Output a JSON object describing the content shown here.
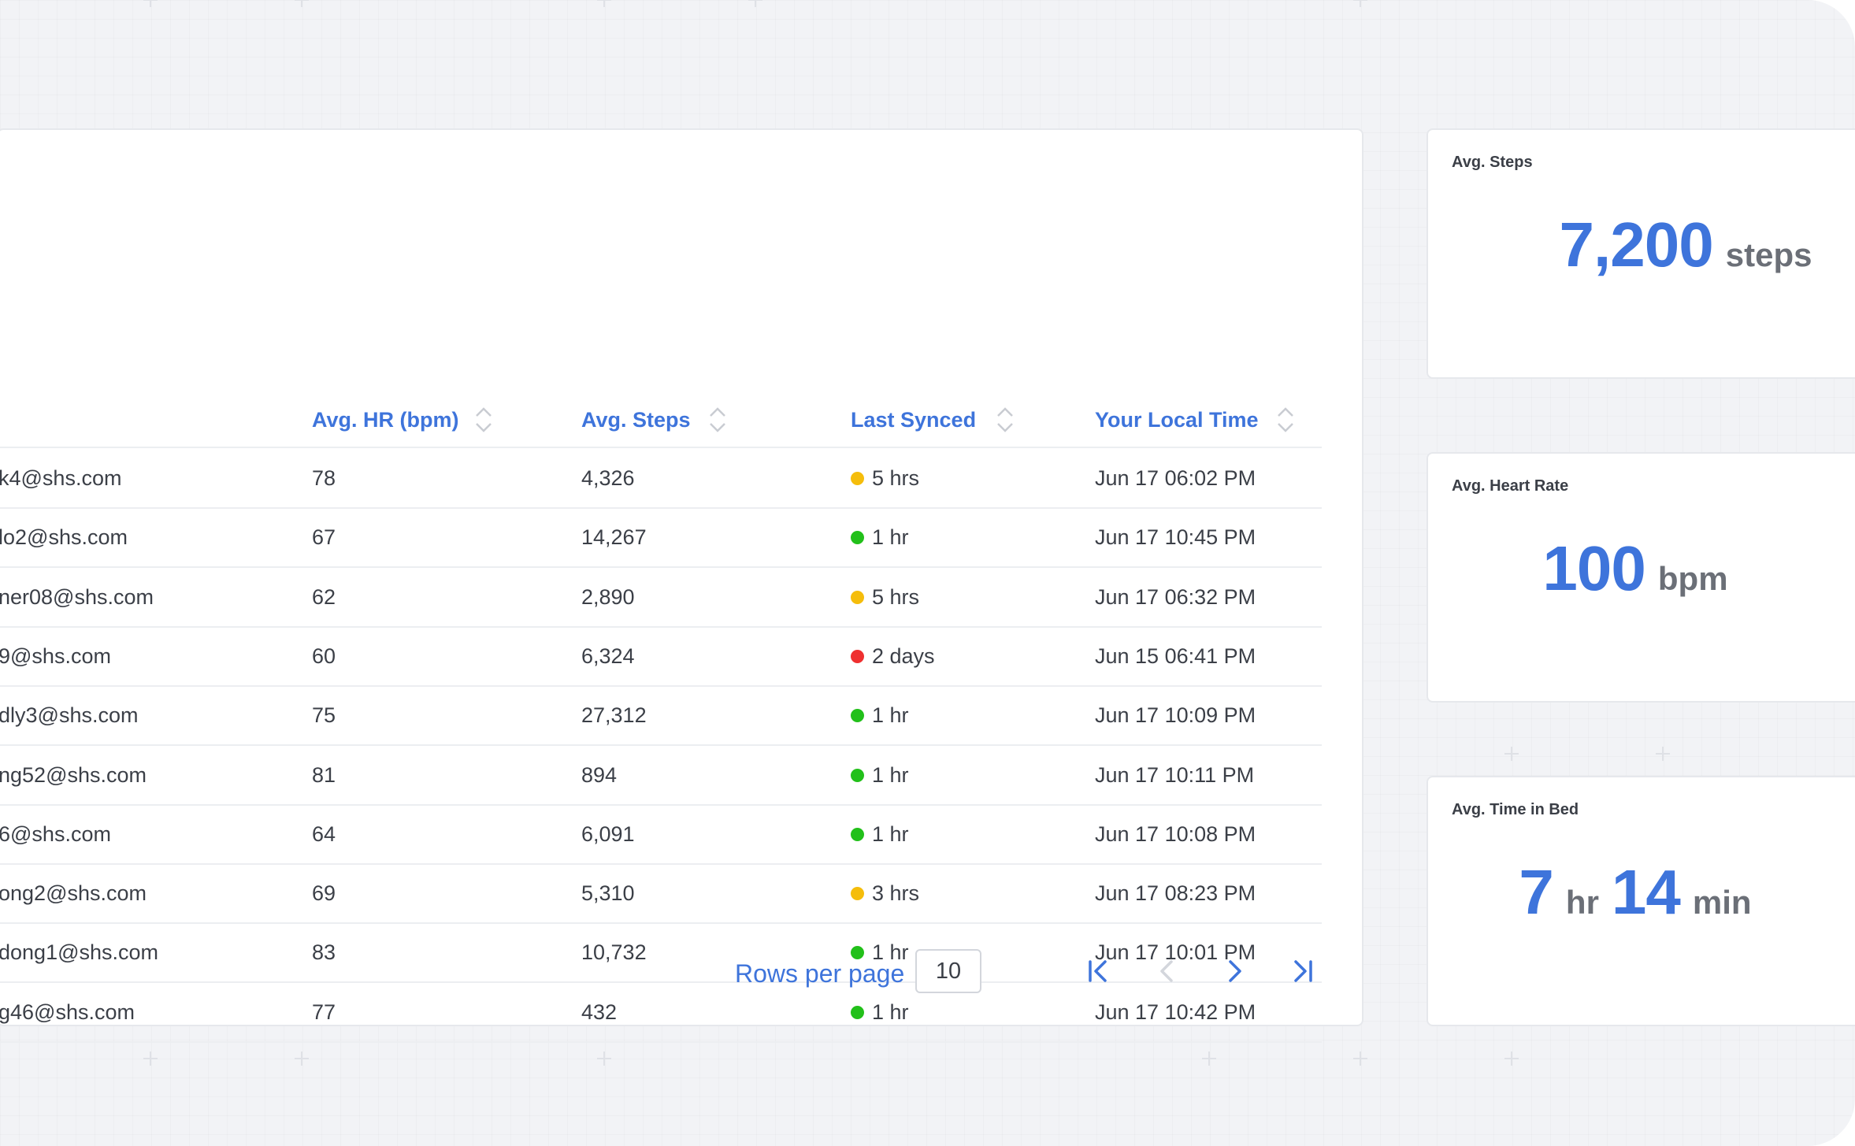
{
  "table": {
    "columns": {
      "hr": "Avg. HR (bpm)",
      "steps": "Avg. Steps",
      "synced": "Last Synced",
      "local_time": "Your Local Time"
    },
    "rows": [
      {
        "email": "k4@shs.com",
        "hr": "78",
        "steps": "4,326",
        "status": "yellow",
        "synced": "5 hrs",
        "time": "Jun 17 06:02 PM"
      },
      {
        "email": "lo2@shs.com",
        "hr": "67",
        "steps": "14,267",
        "status": "green",
        "synced": "1 hr",
        "time": "Jun 17 10:45 PM"
      },
      {
        "email": "ner08@shs.com",
        "hr": "62",
        "steps": "2,890",
        "status": "yellow",
        "synced": "5 hrs",
        "time": "Jun 17 06:32 PM"
      },
      {
        "email": "9@shs.com",
        "hr": "60",
        "steps": "6,324",
        "status": "red",
        "synced": "2 days",
        "time": "Jun 15 06:41 PM"
      },
      {
        "email": "dly3@shs.com",
        "hr": "75",
        "steps": "27,312",
        "status": "green",
        "synced": "1 hr",
        "time": "Jun 17 10:09 PM"
      },
      {
        "email": "ng52@shs.com",
        "hr": "81",
        "steps": "894",
        "status": "green",
        "synced": "1 hr",
        "time": "Jun 17 10:11 PM"
      },
      {
        "email": "6@shs.com",
        "hr": "64",
        "steps": "6,091",
        "status": "green",
        "synced": "1 hr",
        "time": "Jun 17 10:08 PM"
      },
      {
        "email": "ong2@shs.com",
        "hr": "69",
        "steps": "5,310",
        "status": "yellow",
        "synced": "3 hrs",
        "time": "Jun 17 08:23 PM"
      },
      {
        "email": "dong1@shs.com",
        "hr": "83",
        "steps": "10,732",
        "status": "green",
        "synced": "1 hr",
        "time": "Jun 17 10:01 PM"
      },
      {
        "email": "g46@shs.com",
        "hr": "77",
        "steps": "432",
        "status": "green",
        "synced": "1 hr",
        "time": "Jun 17 10:42 PM"
      }
    ]
  },
  "status_colors": {
    "green": "#22c01a",
    "yellow": "#f5bd0b",
    "red": "#ef3030"
  },
  "pagination": {
    "rows_per_page_label": "Rows per page",
    "rows_per_page_value": "10"
  },
  "cards": {
    "steps": {
      "title": "Avg. Steps",
      "value": "7,200",
      "unit": "steps"
    },
    "heart_rate": {
      "title": "Avg. Heart Rate",
      "value": "100",
      "unit": "bpm"
    },
    "time_in_bed": {
      "title": "Avg. Time in Bed",
      "hours": "7",
      "hours_unit": "hr",
      "minutes": "14",
      "minutes_unit": "min"
    }
  },
  "colors": {
    "accent": "#3e74db",
    "text": "#3b3f47",
    "muted": "#6b6f77"
  }
}
